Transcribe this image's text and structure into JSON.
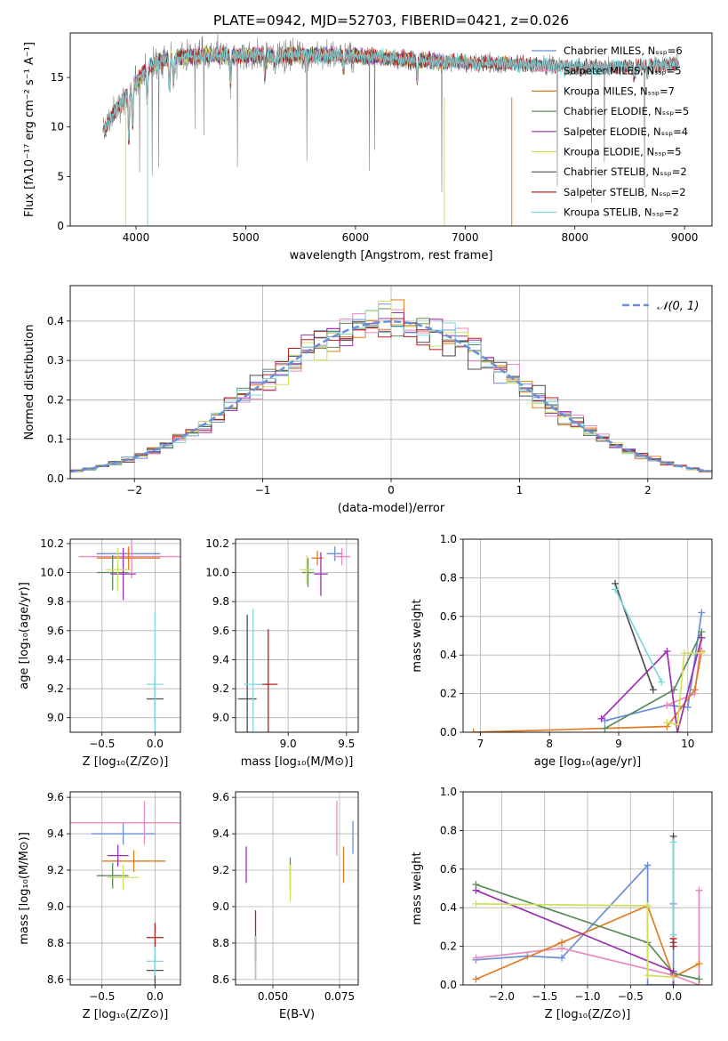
{
  "colors": {
    "chabrier_miles": "#6a8fd8",
    "salpeter_miles": "#e889c0",
    "kroupa_miles": "#e07b22",
    "chabrier_elodie": "#5d8a5d",
    "salpeter_elodie": "#9b30b0",
    "kroupa_elodie": "#cfe05c",
    "chabrier_stelib": "#4d4d4d",
    "salpeter_stelib": "#b81f1f",
    "kroupa_stelib": "#7fd8dc",
    "normal": "#6a8fd8",
    "grid": "#b0b0b0"
  },
  "figure_title": "PLATE=0942, MJD=52703, FIBERID=0421, z=0.026",
  "chart_data": [
    {
      "id": "spectrum",
      "type": "line",
      "xlabel": "wavelength [Angstrom, rest frame]",
      "ylabel": "Flux [fλ10⁻¹⁷ erg cm⁻² s⁻¹ A⁻¹]",
      "xlim": [
        3400,
        9250
      ],
      "ylim": [
        0,
        19.5
      ],
      "xticks": [
        4000,
        5000,
        6000,
        7000,
        8000,
        9000
      ],
      "yticks": [
        0,
        5,
        10,
        15
      ],
      "grid": false,
      "legend_position": "top-right",
      "legend": [
        {
          "name": "Chabrier MILES, Nₛₛₚ=6",
          "color_key": "chabrier_miles"
        },
        {
          "name": "Salpeter MILES, Nₛₛₚ=5",
          "color_key": "salpeter_miles"
        },
        {
          "name": "Kroupa MILES, Nₛₛₚ=7",
          "color_key": "kroupa_miles"
        },
        {
          "name": "Chabrier ELODIE, Nₛₛₚ=5",
          "color_key": "chabrier_elodie"
        },
        {
          "name": "Salpeter ELODIE, Nₛₛₚ=4",
          "color_key": "salpeter_elodie"
        },
        {
          "name": "Kroupa ELODIE, Nₛₛₚ=5",
          "color_key": "kroupa_elodie"
        },
        {
          "name": "Chabrier STELIB, Nₛₛₚ=2",
          "color_key": "chabrier_stelib"
        },
        {
          "name": "Salpeter STELIB, Nₛₛₚ=2",
          "color_key": "salpeter_stelib"
        },
        {
          "name": "Kroupa STELIB, Nₛₛₚ=2",
          "color_key": "kroupa_stelib"
        }
      ],
      "continuum": [
        [
          3700,
          9.5
        ],
        [
          3800,
          11.5
        ],
        [
          3900,
          13
        ],
        [
          4000,
          14.5
        ],
        [
          4100,
          16
        ],
        [
          4300,
          17
        ],
        [
          4600,
          17.2
        ],
        [
          5000,
          17.2
        ],
        [
          5500,
          17.3
        ],
        [
          6000,
          17.2
        ],
        [
          6500,
          16.8
        ],
        [
          7000,
          16.5
        ],
        [
          7400,
          16.4
        ],
        [
          7800,
          16.2
        ],
        [
          8200,
          16
        ],
        [
          8600,
          16.1
        ],
        [
          8950,
          16.4
        ]
      ]
    },
    {
      "id": "residuals",
      "type": "step",
      "xlabel": "(data-model)/error",
      "ylabel": "Normed distribution",
      "xlim": [
        -2.5,
        2.5
      ],
      "ylim": [
        0,
        0.49
      ],
      "xticks": [
        -2,
        -1,
        0,
        1,
        2
      ],
      "yticks": [
        0.0,
        0.1,
        0.2,
        0.3,
        0.4
      ],
      "grid": true,
      "legend_position": "top-right",
      "legend": [
        {
          "name": "𝒩(0, 1)",
          "color_key": "normal"
        }
      ],
      "bin_width": 0.1
    },
    {
      "id": "age_vs_Z",
      "type": "errorbar",
      "xlabel": "Z [log₁₀(Z/Z⊙)]",
      "ylabel": "age  [log₁₀(age/yr)]",
      "xlim": [
        -0.8,
        0.24
      ],
      "ylim": [
        8.9,
        10.23
      ],
      "xticks": [
        -0.5,
        0.0
      ],
      "yticks": [
        9.0,
        9.2,
        9.4,
        9.6,
        9.8,
        10.0,
        10.2
      ],
      "grid": true,
      "points": [
        {
          "c": "chabrier_miles",
          "x": -0.25,
          "xe": 0.3,
          "y": 10.13,
          "ye": 0.03
        },
        {
          "c": "salpeter_miles",
          "x": -0.22,
          "xe": 0.5,
          "y": 10.11,
          "ye": 0.15
        },
        {
          "c": "kroupa_miles",
          "x": -0.25,
          "xe": 0.3,
          "y": 10.1,
          "ye": 0.08
        },
        {
          "c": "chabrier_elodie",
          "x": -0.4,
          "xe": 0.15,
          "y": 10.0,
          "ye": 0.12
        },
        {
          "c": "salpeter_elodie",
          "x": -0.3,
          "xe": 0.12,
          "y": 9.99,
          "ye": 0.18
        },
        {
          "c": "kroupa_elodie",
          "x": -0.35,
          "xe": 0.12,
          "y": 10.02,
          "ye": 0.15
        },
        {
          "c": "chabrier_stelib",
          "x": 0.0,
          "xe": 0.08,
          "y": 9.13,
          "ye": 0.16
        },
        {
          "c": "kroupa_stelib",
          "x": 0.0,
          "xe": 0.08,
          "y": 9.23,
          "ye": 0.5
        }
      ]
    },
    {
      "id": "age_vs_mass",
      "type": "errorbar",
      "xlabel": "mass [log₁₀(M/M⊙)]",
      "ylabel": "",
      "xlim": [
        8.55,
        9.6
      ],
      "ylim": [
        8.9,
        10.23
      ],
      "xticks": [
        9.0,
        9.5
      ],
      "yticks": [
        9.0,
        9.2,
        9.4,
        9.6,
        9.8,
        10.0,
        10.2
      ],
      "grid": true,
      "points": [
        {
          "c": "chabrier_miles",
          "x": 9.4,
          "xe": 0.07,
          "y": 10.13,
          "ye": 0.05
        },
        {
          "c": "salpeter_miles",
          "x": 9.46,
          "xe": 0.07,
          "y": 10.11,
          "ye": 0.06
        },
        {
          "c": "kroupa_miles",
          "x": 9.25,
          "xe": 0.05,
          "y": 10.1,
          "ye": 0.05
        },
        {
          "c": "chabrier_elodie",
          "x": 9.17,
          "xe": 0.05,
          "y": 10.0,
          "ye": 0.1
        },
        {
          "c": "salpeter_elodie",
          "x": 9.28,
          "xe": 0.06,
          "y": 9.99,
          "ye": 0.15
        },
        {
          "c": "kroupa_elodie",
          "x": 9.16,
          "xe": 0.06,
          "y": 10.02,
          "ye": 0.1
        },
        {
          "c": "chabrier_stelib",
          "x": 8.65,
          "xe": 0.08,
          "y": 9.13,
          "ye": 0.58
        },
        {
          "c": "salpeter_stelib",
          "x": 8.83,
          "xe": 0.08,
          "y": 9.23,
          "ye": 0.38
        },
        {
          "c": "kroupa_stelib",
          "x": 8.7,
          "xe": 0.08,
          "y": 9.23,
          "ye": 0.52
        }
      ]
    },
    {
      "id": "weight_vs_age",
      "type": "line",
      "xlabel": "age  [log₁₀(age/yr)]",
      "ylabel": "mass weight",
      "xlim": [
        6.75,
        10.35
      ],
      "ylim": [
        0,
        1.0
      ],
      "xticks": [
        7,
        8,
        9,
        10
      ],
      "yticks": [
        0.0,
        0.2,
        0.4,
        0.6,
        0.8,
        1.0
      ],
      "grid": true,
      "series": [
        {
          "c": "chabrier_miles",
          "x": [
            8.8,
            9.7,
            10.0,
            10.2
          ],
          "y": [
            0.06,
            0.14,
            0.13,
            0.62
          ]
        },
        {
          "c": "salpeter_miles",
          "x": [
            9.7,
            10.1,
            10.2
          ],
          "y": [
            0.14,
            0.2,
            0.49
          ]
        },
        {
          "c": "kroupa_miles",
          "x": [
            6.9,
            9.7,
            10.1,
            10.2
          ],
          "y": [
            0.0,
            0.03,
            0.22,
            0.42
          ]
        },
        {
          "c": "chabrier_elodie",
          "x": [
            8.8,
            9.8,
            10.2
          ],
          "y": [
            0.02,
            0.22,
            0.52
          ]
        },
        {
          "c": "salpeter_elodie",
          "x": [
            8.75,
            9.7,
            9.85,
            10.2
          ],
          "y": [
            0.07,
            0.42,
            0.0,
            0.49
          ]
        },
        {
          "c": "kroupa_elodie",
          "x": [
            9.7,
            9.85,
            9.95,
            10.2
          ],
          "y": [
            0.05,
            0.04,
            0.41,
            0.41
          ]
        },
        {
          "c": "chabrier_stelib",
          "x": [
            8.95,
            9.5
          ],
          "y": [
            0.77,
            0.22
          ]
        },
        {
          "c": "kroupa_stelib",
          "x": [
            8.95,
            9.62
          ],
          "y": [
            0.74,
            0.26
          ]
        }
      ]
    },
    {
      "id": "mass_vs_Z",
      "type": "errorbar",
      "xlabel": "Z [log₁₀(Z/Z⊙)]",
      "ylabel": "mass [log₁₀(M/M⊙)]",
      "xlim": [
        -0.8,
        0.24
      ],
      "ylim": [
        8.57,
        9.63
      ],
      "xticks": [
        -0.5,
        0.0
      ],
      "yticks": [
        8.6,
        8.8,
        9.0,
        9.2,
        9.4,
        9.6
      ],
      "grid": true,
      "points": [
        {
          "c": "chabrier_miles",
          "x": -0.3,
          "xe": 0.3,
          "y": 9.4,
          "ye": 0.06
        },
        {
          "c": "salpeter_miles",
          "x": -0.1,
          "xe": 0.7,
          "y": 9.46,
          "ye": 0.12
        },
        {
          "c": "kroupa_miles",
          "x": -0.2,
          "xe": 0.3,
          "y": 9.25,
          "ye": 0.06
        },
        {
          "c": "chabrier_elodie",
          "x": -0.4,
          "xe": 0.15,
          "y": 9.17,
          "ye": 0.07
        },
        {
          "c": "salpeter_elodie",
          "x": -0.35,
          "xe": 0.1,
          "y": 9.28,
          "ye": 0.06
        },
        {
          "c": "kroupa_elodie",
          "x": -0.3,
          "xe": 0.15,
          "y": 9.16,
          "ye": 0.07
        },
        {
          "c": "chabrier_stelib",
          "x": 0.0,
          "xe": 0.08,
          "y": 8.65,
          "ye": 0.08
        },
        {
          "c": "salpeter_stelib",
          "x": 0.0,
          "xe": 0.08,
          "y": 8.83,
          "ye": 0.08
        },
        {
          "c": "kroupa_stelib",
          "x": 0.0,
          "xe": 0.08,
          "y": 8.7,
          "ye": 0.08
        }
      ]
    },
    {
      "id": "mass_vs_ebv",
      "type": "errorbar",
      "xlabel": "E(B-V)",
      "ylabel": "",
      "xlim": [
        0.036,
        0.082
      ],
      "ylim": [
        8.57,
        9.63
      ],
      "xticks": [
        0.05,
        0.075
      ],
      "yticks": [
        8.6,
        8.8,
        9.0,
        9.2,
        9.4,
        9.6
      ],
      "grid": true,
      "points": [
        {
          "c": "chabrier_miles",
          "x": 0.08,
          "xe": 0.0,
          "y": 9.38,
          "ye": 0.09
        },
        {
          "c": "salpeter_miles",
          "x": 0.074,
          "xe": 0.0,
          "y": 9.43,
          "ye": 0.15
        },
        {
          "c": "kroupa_miles",
          "x": 0.0765,
          "xe": 0.0,
          "y": 9.23,
          "ye": 0.1
        },
        {
          "c": "chabrier_elodie",
          "x": 0.0565,
          "xe": 0.0,
          "y": 9.18,
          "ye": 0.09
        },
        {
          "c": "salpeter_elodie",
          "x": 0.04,
          "xe": 0.0,
          "y": 9.23,
          "ye": 0.1
        },
        {
          "c": "kroupa_elodie",
          "x": 0.0565,
          "xe": 0.0,
          "y": 9.13,
          "ye": 0.1
        },
        {
          "c": "chabrier_stelib",
          "x": 0.0435,
          "xe": 0.0,
          "y": 8.72,
          "ye": 0.12
        },
        {
          "c": "salpeter_stelib",
          "x": 0.0435,
          "xe": 0.0,
          "y": 8.84,
          "ye": 0.14
        },
        {
          "c": "kroupa_stelib",
          "x": 0.0435,
          "xe": 0.0,
          "y": 8.72,
          "ye": 0.12
        }
      ]
    },
    {
      "id": "weight_vs_Z",
      "type": "line",
      "xlabel": "Z [log₁₀(Z/Z⊙)]",
      "ylabel": "mass weight",
      "xlim": [
        -2.45,
        0.45
      ],
      "ylim": [
        0,
        1.0
      ],
      "xticks": [
        -2.0,
        -1.5,
        -1.0,
        -0.5,
        0.0
      ],
      "yticks": [
        0.0,
        0.2,
        0.4,
        0.6,
        0.8,
        1.0
      ],
      "grid": true,
      "series": [
        {
          "c": "chabrier_miles",
          "x": [
            -2.3,
            -1.7,
            -1.3,
            -0.3,
            -0.3,
            0.0,
            0.0
          ],
          "y": [
            0.13,
            0.15,
            0.14,
            0.62,
            0.0,
            0.0,
            0.42
          ]
        },
        {
          "c": "salpeter_miles",
          "x": [
            -2.3,
            -1.3,
            0.0,
            0.3,
            0.3
          ],
          "y": [
            0.14,
            0.19,
            0.05,
            0.0,
            0.49
          ]
        },
        {
          "c": "kroupa_miles",
          "x": [
            -2.3,
            -1.3,
            -0.3,
            0.0,
            0.3
          ],
          "y": [
            0.03,
            0.22,
            0.41,
            0.04,
            0.11
          ]
        },
        {
          "c": "chabrier_elodie",
          "x": [
            -2.3,
            -0.3,
            0.0,
            0.3
          ],
          "y": [
            0.52,
            0.22,
            0.06,
            0.03
          ]
        },
        {
          "c": "salpeter_elodie",
          "x": [
            -2.3,
            0.0,
            0.0
          ],
          "y": [
            0.49,
            0.07,
            0.0
          ]
        },
        {
          "c": "kroupa_elodie",
          "x": [
            -2.3,
            -0.3,
            -0.3,
            0.0
          ],
          "y": [
            0.42,
            0.41,
            0.05,
            0.04
          ]
        },
        {
          "c": "chabrier_stelib",
          "x": [
            0.0,
            0.0
          ],
          "y": [
            0.22,
            0.77
          ]
        },
        {
          "c": "salpeter_stelib",
          "x": [
            0.0,
            0.0
          ],
          "y": [
            0.2,
            0.24
          ]
        },
        {
          "c": "kroupa_stelib",
          "x": [
            0.0,
            0.0
          ],
          "y": [
            0.26,
            0.74
          ]
        }
      ]
    }
  ]
}
